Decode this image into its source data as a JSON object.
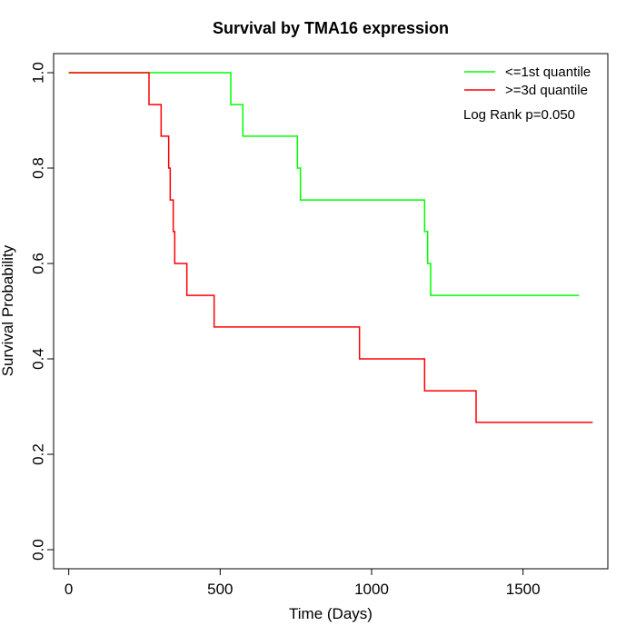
{
  "chart_data": {
    "type": "line",
    "step": true,
    "title": "Survival by TMA16 expression",
    "xlabel": "Time (Days)",
    "ylabel": "Survival Probability",
    "xlim": [
      -50,
      1780
    ],
    "ylim": [
      -0.04,
      1.04
    ],
    "x_ticks": [
      0,
      500,
      1000,
      1500
    ],
    "y_ticks": [
      0.0,
      0.2,
      0.4,
      0.6,
      0.8,
      1.0
    ],
    "x_tick_labels": [
      "0",
      "500",
      "1000",
      "1500"
    ],
    "y_tick_labels": [
      "0.0",
      "0.2",
      "0.4",
      "0.6",
      "0.8",
      "1.0"
    ],
    "grid": false,
    "legend_position": "top-right",
    "annotation": "Log Rank p=0.050",
    "series": [
      {
        "name": "<=1st quantile",
        "color": "#00ff00",
        "x": [
          0,
          535,
          575,
          755,
          765,
          1175,
          1185,
          1195,
          1685
        ],
        "y": [
          1.0,
          0.933,
          0.867,
          0.8,
          0.733,
          0.667,
          0.6,
          0.533,
          0.533
        ]
      },
      {
        "name": ">=3d quantile",
        "color": "#ff0000",
        "x": [
          0,
          265,
          305,
          330,
          335,
          345,
          350,
          390,
          480,
          960,
          1175,
          1345,
          1730
        ],
        "y": [
          1.0,
          0.933,
          0.867,
          0.8,
          0.733,
          0.667,
          0.6,
          0.533,
          0.467,
          0.4,
          0.333,
          0.267,
          0.267
        ]
      }
    ]
  }
}
